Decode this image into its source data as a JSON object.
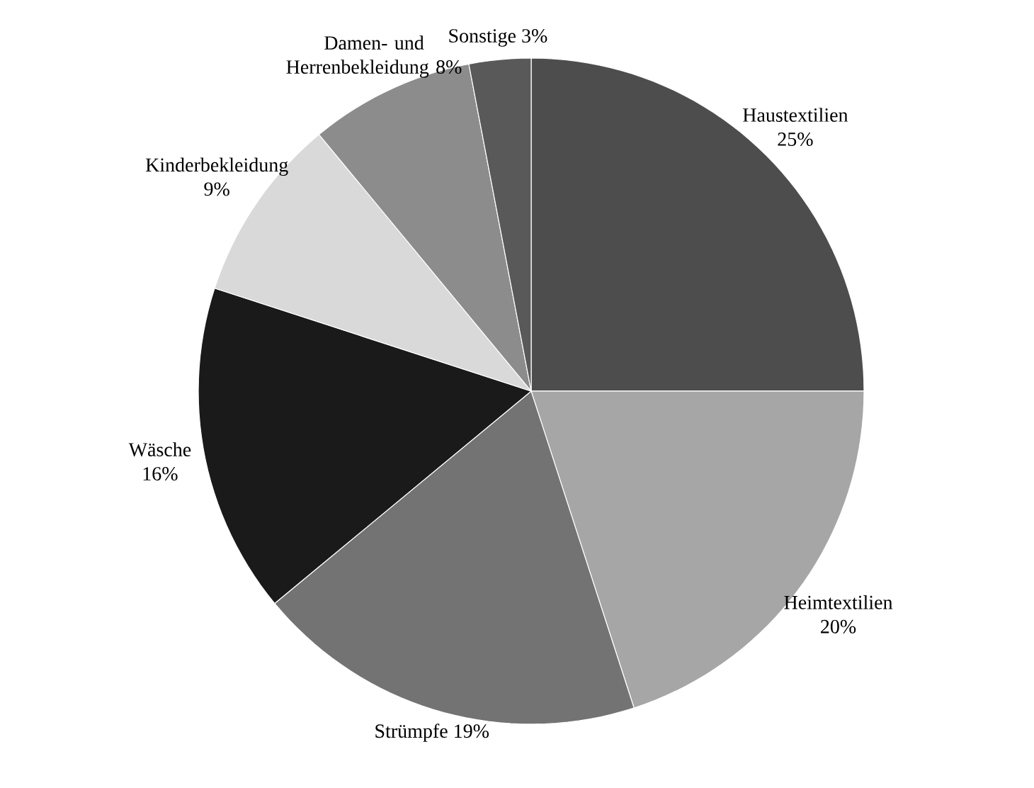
{
  "chart_data": {
    "type": "pie",
    "categories": [
      "Haustextilien",
      "Heimtextilien",
      "Strümpfe",
      "Wäsche",
      "Kinderbekleidung",
      "Damen- und Herrenbekleidung",
      "Sonstige"
    ],
    "values": [
      25,
      20,
      19,
      16,
      9,
      8,
      3
    ],
    "value_labels": [
      "25%",
      "20%",
      "19%",
      "16%",
      "9%",
      "8%",
      "3%"
    ],
    "colors": [
      "#4d4d4d",
      "#a6a6a6",
      "#737373",
      "#1a1a1a",
      "#d9d9d9",
      "#8c8c8c",
      "#595959"
    ]
  }
}
